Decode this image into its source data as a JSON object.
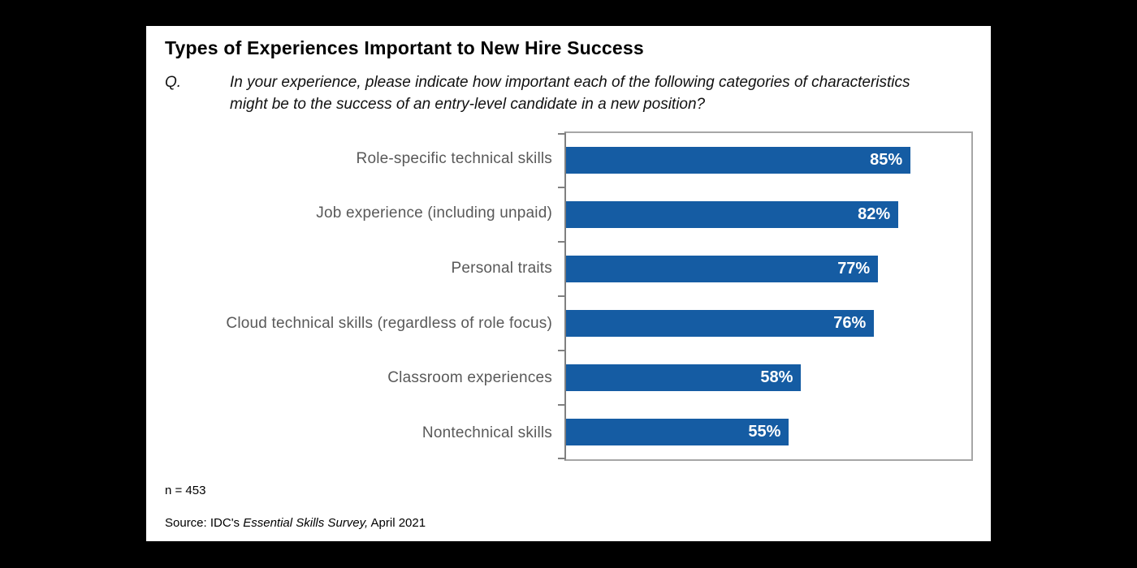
{
  "panel": {
    "title": "Types of Experiences Important to New Hire Success",
    "question_label": "Q.",
    "question_text": "In your experience, please indicate how important each of the following categories of characteristics might be to the success of an entry-level candidate in a new position?",
    "n_label": "n = 453",
    "source_prefix": "Source: IDC's ",
    "source_italic": "Essential Skills Survey,",
    "source_suffix": " April 2021"
  },
  "chart_data": {
    "type": "bar",
    "orientation": "horizontal",
    "title": "Types of Experiences Important to New Hire Success",
    "categories": [
      "Role-specific technical skills",
      "Job experience (including unpaid)",
      "Personal traits",
      "Cloud technical skills (regardless of role focus)",
      "Classroom experiences",
      "Nontechnical skills"
    ],
    "values": [
      85,
      82,
      77,
      76,
      58,
      55
    ],
    "value_suffix": "%",
    "xlim": [
      0,
      100
    ],
    "grid": false,
    "legend": "none",
    "bar_color": "#155CA3",
    "value_label_color": "#FFFFFF",
    "category_label_color": "#595959",
    "axis_color": "#808080",
    "border_color": "#A6A6A6",
    "sample_size": 453
  }
}
